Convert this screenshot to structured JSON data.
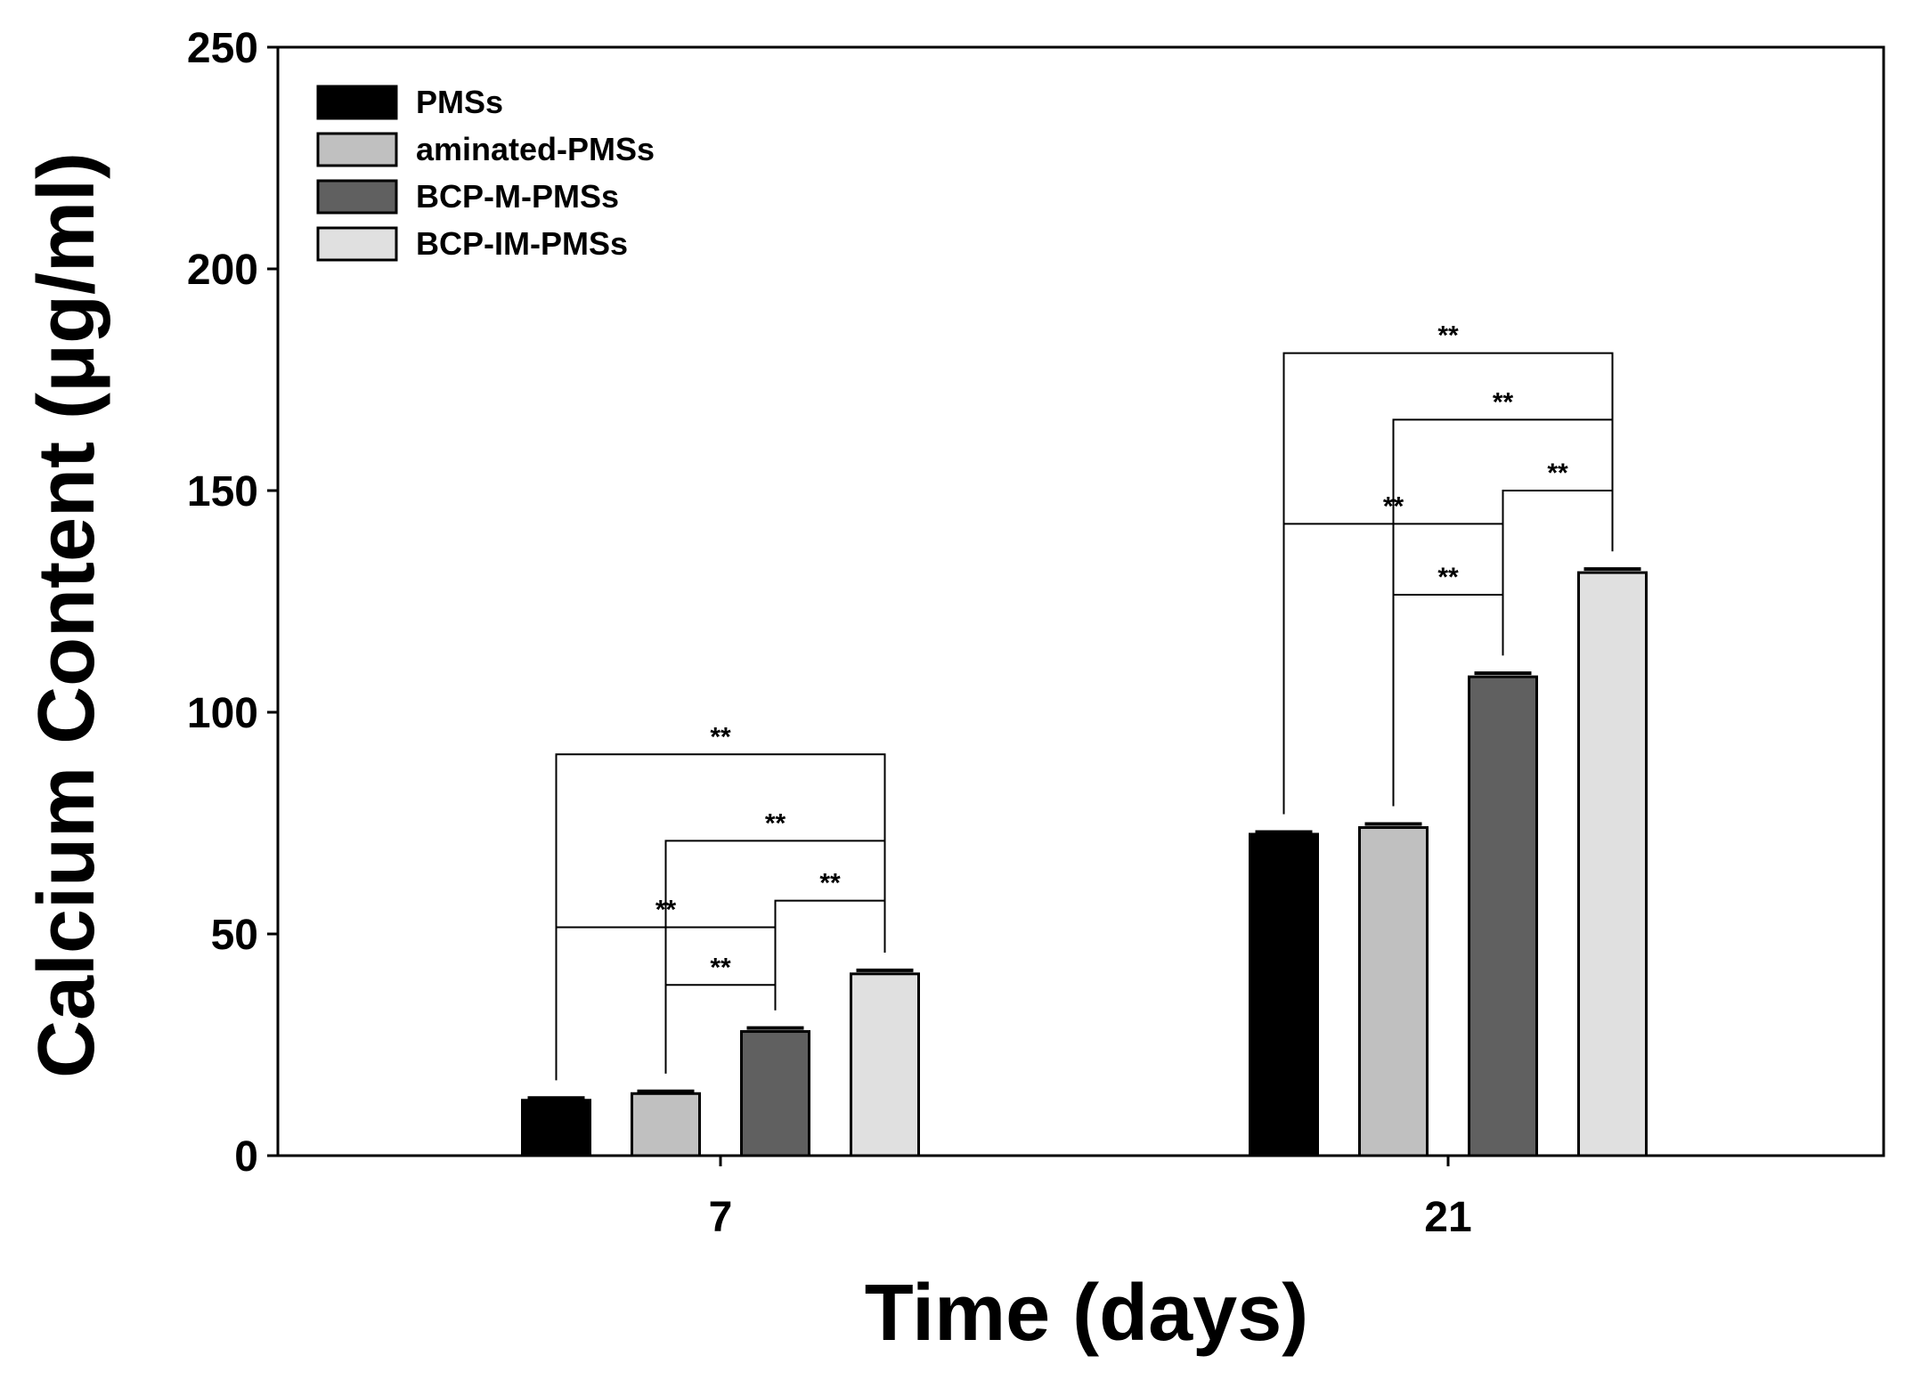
{
  "chart_data": {
    "type": "bar",
    "title": "",
    "xlabel": "Time (days)",
    "ylabel": "Calcium Content (μg/ml)",
    "ylim": [
      0,
      250
    ],
    "yticks": [
      0,
      50,
      100,
      150,
      200,
      250
    ],
    "categories": [
      "7",
      "21"
    ],
    "legend_position": "top-left",
    "series": [
      {
        "name": "PMSs",
        "color": "#000000",
        "values": [
          12.5,
          72.5
        ],
        "errors": [
          0.5,
          0.5
        ]
      },
      {
        "name": "aminated-PMSs",
        "color": "#c0c0c0",
        "values": [
          14,
          74
        ],
        "errors": [
          0.5,
          0.8
        ]
      },
      {
        "name": "BCP-M-PMSs",
        "color": "#606060",
        "values": [
          28,
          108
        ],
        "errors": [
          0.8,
          0.8
        ]
      },
      {
        "name": "BCP-IM-PMSs",
        "color": "#e0e0e0",
        "values": [
          41,
          131.5
        ],
        "errors": [
          0.8,
          0.8
        ]
      }
    ],
    "significance_label": "**",
    "significance": [
      {
        "category": 0,
        "from": 0,
        "to": 3,
        "y": 90.5,
        "label": "**"
      },
      {
        "category": 0,
        "from": 1,
        "to": 3,
        "y": 71,
        "label": "**"
      },
      {
        "category": 0,
        "from": 0,
        "to": 2,
        "y": 51.5,
        "label": "**"
      },
      {
        "category": 0,
        "from": 2,
        "to": 3,
        "y": 57.5,
        "label": "**"
      },
      {
        "category": 0,
        "from": 1,
        "to": 2,
        "y": 38.5,
        "label": "**"
      },
      {
        "category": 1,
        "from": 0,
        "to": 3,
        "y": 181,
        "label": "**"
      },
      {
        "category": 1,
        "from": 1,
        "to": 3,
        "y": 166,
        "label": "**"
      },
      {
        "category": 1,
        "from": 0,
        "to": 2,
        "y": 142.5,
        "label": "**"
      },
      {
        "category": 1,
        "from": 2,
        "to": 3,
        "y": 150,
        "label": "**"
      },
      {
        "category": 1,
        "from": 1,
        "to": 2,
        "y": 126.5,
        "label": "**"
      }
    ]
  }
}
